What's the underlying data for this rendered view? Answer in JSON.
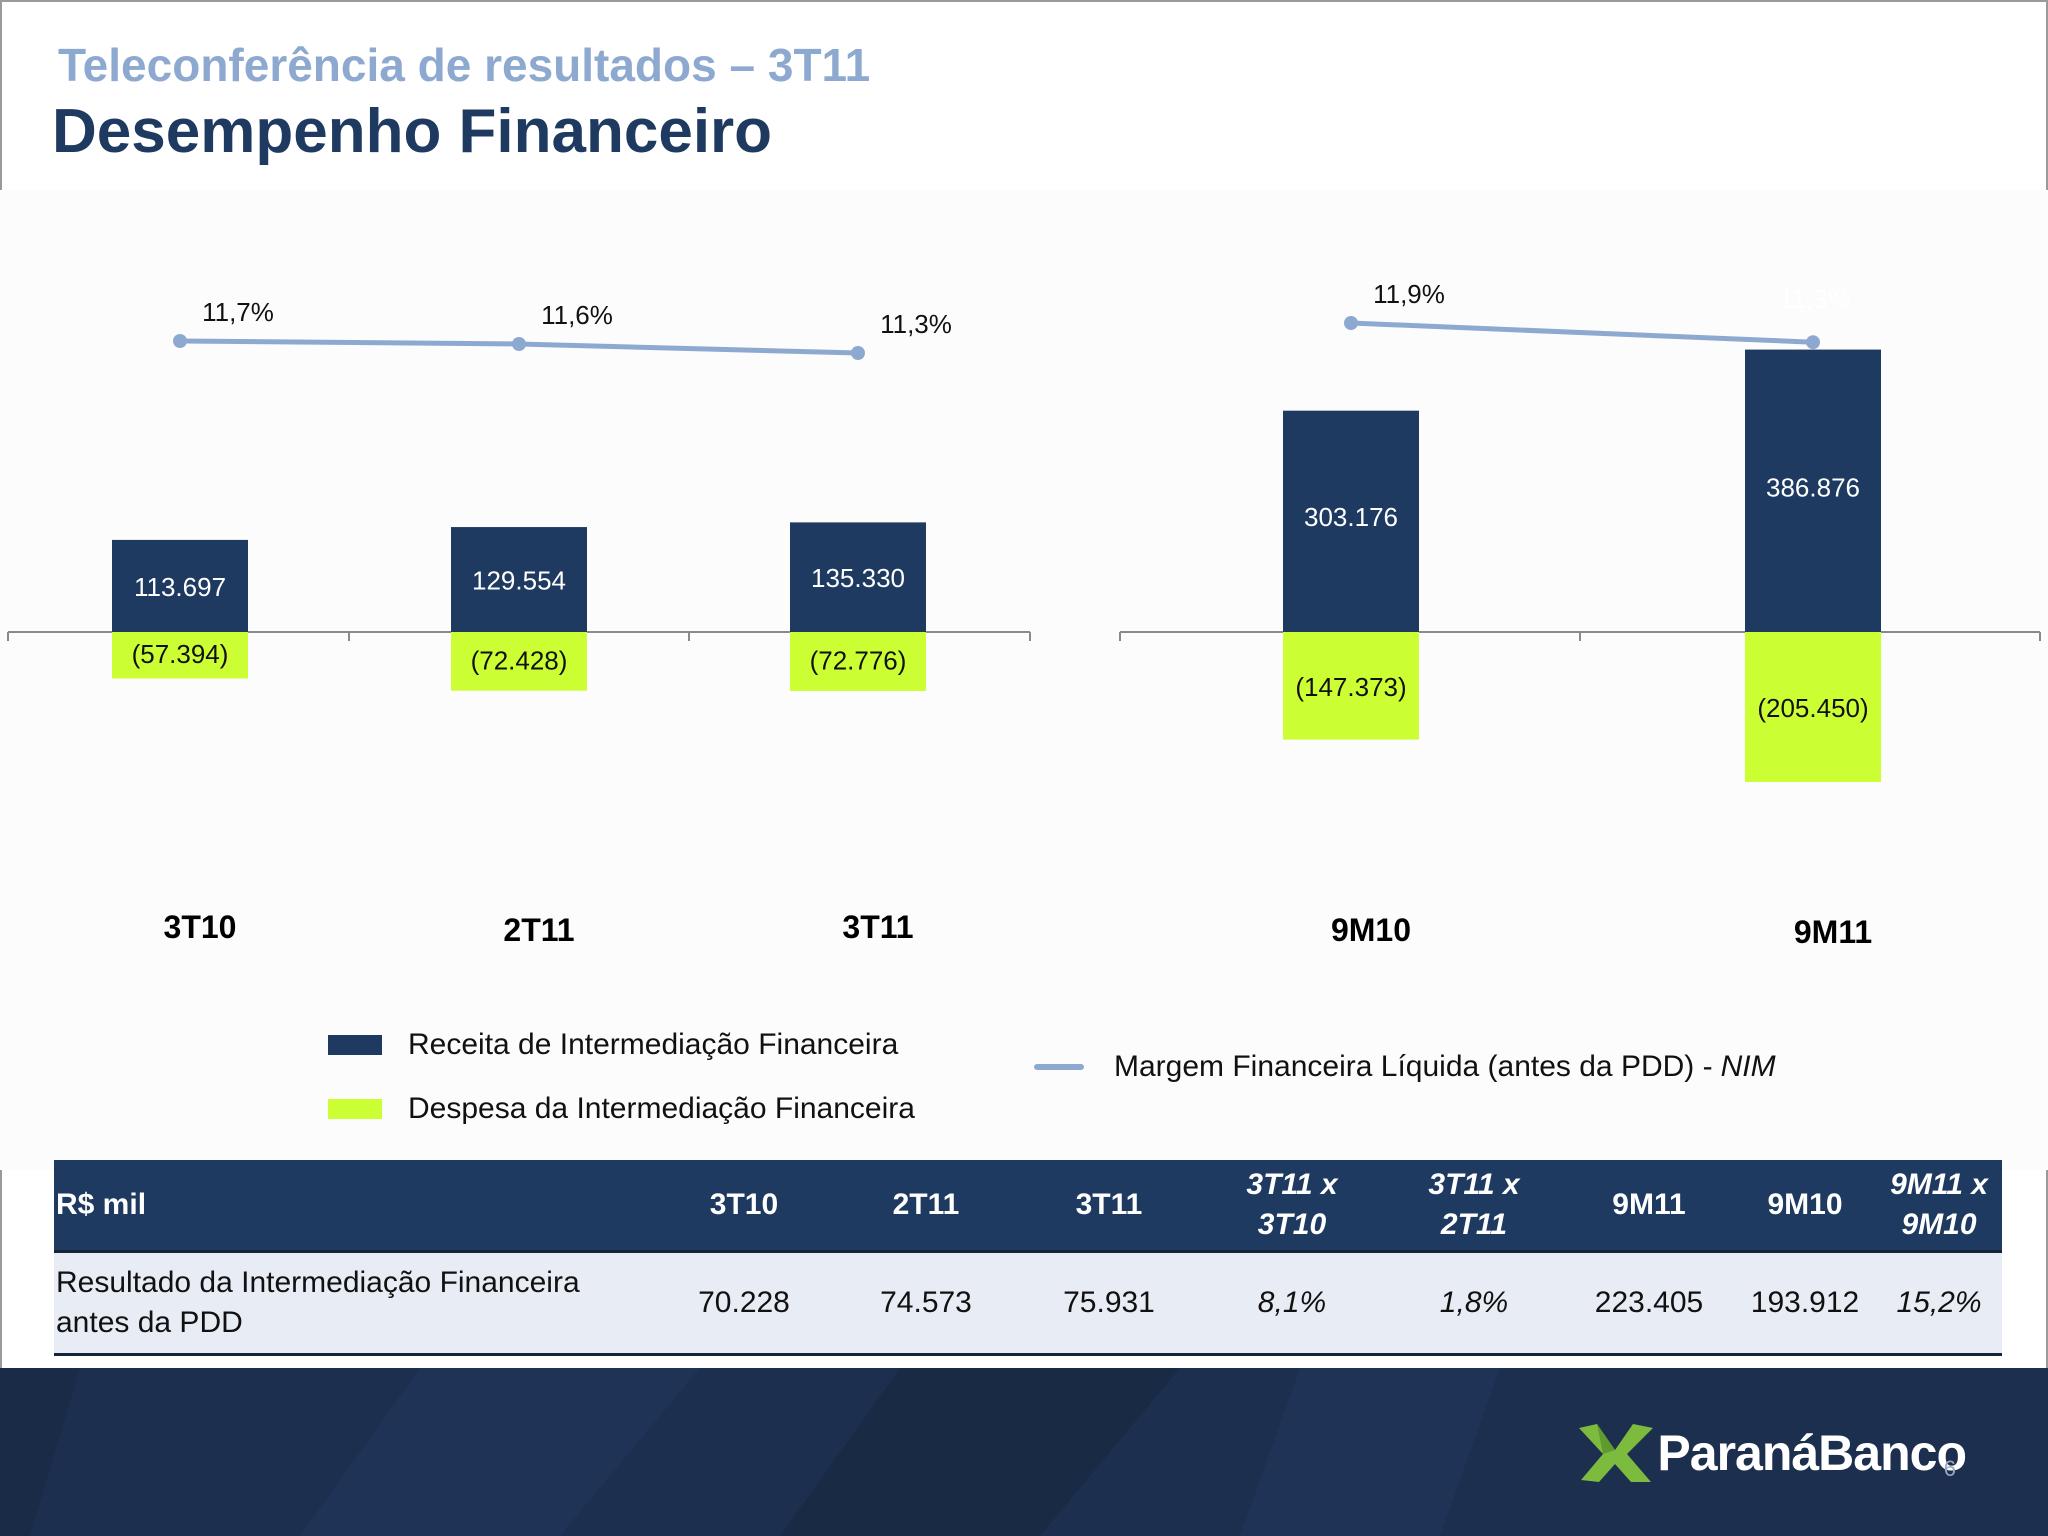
{
  "header": {
    "subtitle": "Teleconferência de resultados – 3T11",
    "title": "Desempenho Financeiro"
  },
  "colors": {
    "receita": "#1f3a60",
    "despesa": "#ccff33",
    "nim": "#8ea9cf",
    "header_bg": "#1f3a60",
    "row_bg": "#e7ecf5"
  },
  "chart_data": [
    {
      "type": "bar",
      "categories": [
        "3T10",
        "2T11",
        "3T11"
      ],
      "series": [
        {
          "name": "Receita de Intermediação Financeira",
          "values": [
            113697,
            129554,
            135330
          ],
          "labels": [
            "113.697",
            "129.554",
            "135.330"
          ]
        },
        {
          "name": "Despesa da Intermediação Financeira",
          "values": [
            -57394,
            -72428,
            -72776
          ],
          "labels": [
            "(57.394)",
            "(72.428)",
            "(72.776)"
          ]
        },
        {
          "name": "Margem Financeira Líquida (antes da PDD) - NIM",
          "type": "line",
          "values": [
            11.7,
            11.6,
            11.3
          ],
          "labels": [
            "11,7%",
            "11,6%",
            "11,3%"
          ]
        }
      ]
    },
    {
      "type": "bar",
      "categories": [
        "9M10",
        "9M11"
      ],
      "series": [
        {
          "name": "Receita de Intermediação Financeira",
          "values": [
            303176,
            386876
          ],
          "labels": [
            "303.176",
            "386.876"
          ]
        },
        {
          "name": "Despesa da Intermediação Financeira",
          "values": [
            -147373,
            -205450
          ],
          "labels": [
            "(147.373)",
            "(205.450)"
          ]
        },
        {
          "name": "Margem Financeira Líquida (antes da PDD) - NIM",
          "type": "line",
          "values": [
            11.9,
            11.3
          ],
          "labels": [
            "11,9%",
            "11,3%"
          ]
        }
      ]
    }
  ],
  "legend": {
    "receita": "Receita de Intermediação Financeira",
    "despesa": "Despesa da Intermediação Financeira",
    "nim": "Margem Financeira Líquida (antes da PDD) -",
    "nim_italic": "NIM"
  },
  "table": {
    "headers": [
      {
        "line1": "R$ mil",
        "line2": ""
      },
      {
        "line1": "3T10",
        "line2": ""
      },
      {
        "line1": "2T11",
        "line2": ""
      },
      {
        "line1": "3T11",
        "line2": ""
      },
      {
        "line1": "3T11 x",
        "line2": "3T10"
      },
      {
        "line1": "3T11 x",
        "line2": "2T11"
      },
      {
        "line1": "9M11",
        "line2": ""
      },
      {
        "line1": "9M10",
        "line2": ""
      },
      {
        "line1": "9M11 x",
        "line2": "9M10"
      }
    ],
    "row": {
      "label_line1": "Resultado da Intermediação Financeira",
      "label_line2": "antes da PDD",
      "values": [
        "70.228",
        "74.573",
        "75.931",
        "8,1%",
        "1,8%",
        "223.405",
        "193.912",
        "15,2%"
      ]
    }
  },
  "footer": {
    "logo_text": "ParanáBanco",
    "page_number": "6"
  }
}
